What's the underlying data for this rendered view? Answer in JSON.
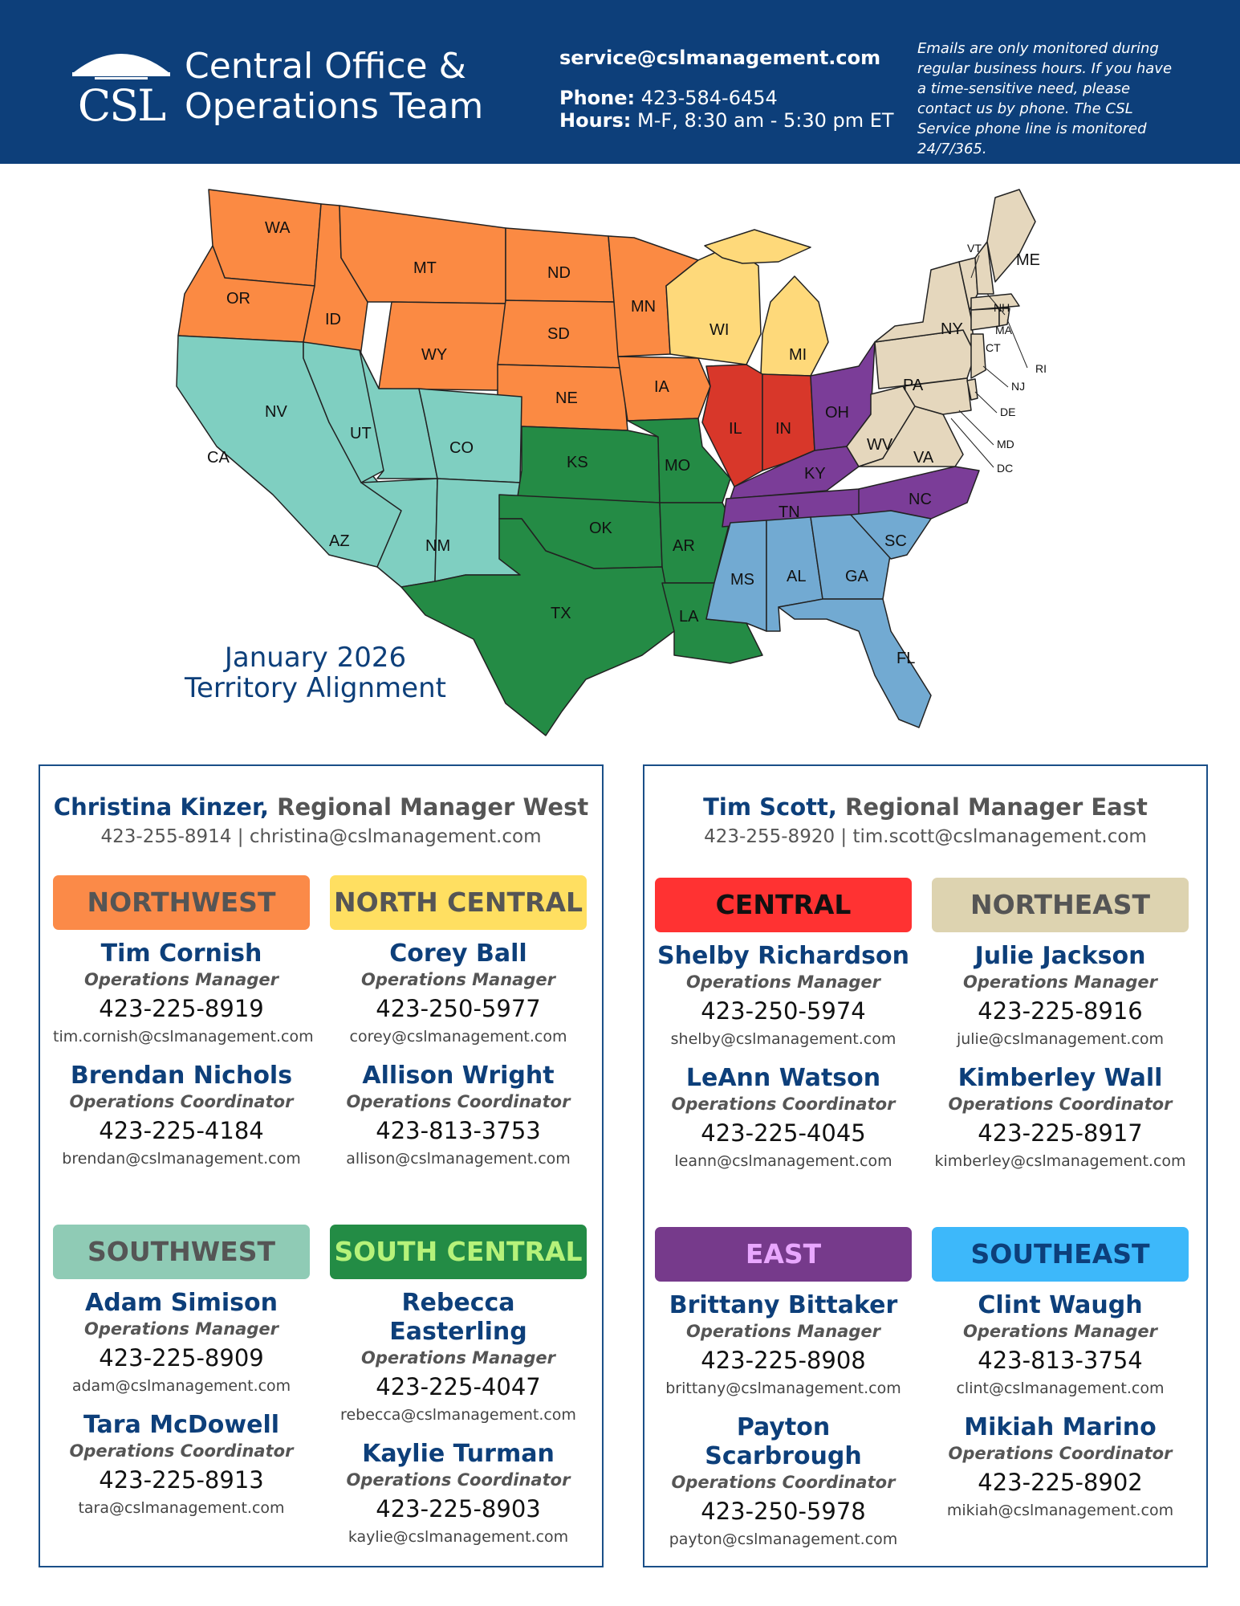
{
  "header": {
    "logo_text": "CSL",
    "title_line1": "Central Office &",
    "title_line2": "Operations Team",
    "email": "service@cslmanagement.com",
    "phone_label": "Phone:",
    "phone": "423-584-6454",
    "hours_label": "Hours:",
    "hours": "M-F, 8:30 am - 5:30 pm ET",
    "disclaimer": "Emails are only monitored during regular business hours. If you have a time-sensitive need, please contact us by phone. The CSL Service phone line is monitored 24/7/365."
  },
  "map": {
    "caption_line1": "January 2026",
    "caption_line2": "Territory Alignment",
    "region_colors": {
      "northwest": "#fb8a43",
      "north_central": "#fed97a",
      "southwest": "#7fcfc1",
      "south_central": "#248b45",
      "central": "#d8372a",
      "east": "#7b3d98",
      "northeast": "#e5d7bd",
      "southeast": "#72aad2"
    },
    "states": {
      "WA": "WA",
      "OR": "OR",
      "ID": "ID",
      "MT": "MT",
      "WY": "WY",
      "ND": "ND",
      "SD": "SD",
      "NE": "NE",
      "MN": "MN",
      "IA": "IA",
      "WI": "WI",
      "MI": "MI",
      "CA": "CA",
      "NV": "NV",
      "UT": "UT",
      "CO": "CO",
      "AZ": "AZ",
      "NM": "NM",
      "KS": "KS",
      "MO": "MO",
      "OK": "OK",
      "AR": "AR",
      "TX": "TX",
      "LA": "LA",
      "IL": "IL",
      "IN": "IN",
      "OH": "OH",
      "KY": "KY",
      "TN": "TN",
      "NC": "NC",
      "MS": "MS",
      "AL": "AL",
      "GA": "GA",
      "SC": "SC",
      "FL": "FL",
      "PA": "PA",
      "NY": "NY",
      "WV": "WV",
      "VA": "VA",
      "VT": "VT",
      "ME": "ME",
      "NH": "NH",
      "MA": "MA",
      "CT": "CT",
      "RI": "RI",
      "NJ": "NJ",
      "DE": "DE",
      "MD": "MD",
      "DC": "DC"
    }
  },
  "west": {
    "manager_name": "Christina Kinzer,",
    "manager_title": " Regional Manager West",
    "manager_contact": "423-255-8914 | christina@cslmanagement.com",
    "regions": [
      {
        "name": "NORTHWEST",
        "color": "#fb8a48",
        "text_color": "#555555",
        "people": [
          {
            "name": "Tim Cornish",
            "role": "Operations Manager",
            "phone": "423-225-8919",
            "email": "tim.cornish@cslmanagement.com"
          },
          {
            "name": "Brendan Nichols",
            "role": "Operations Coordinator",
            "phone": "423-225-4184",
            "email": "brendan@cslmanagement.com"
          }
        ]
      },
      {
        "name": "NORTH CENTRAL",
        "color": "#ffdf61",
        "text_color": "#555555",
        "people": [
          {
            "name": "Corey Ball",
            "role": "Operations Manager",
            "phone": "423-250-5977",
            "email": "corey@cslmanagement.com"
          },
          {
            "name": "Allison Wright",
            "role": "Operations Coordinator",
            "phone": "423-813-3753",
            "email": "allison@cslmanagement.com"
          }
        ]
      },
      {
        "name": "SOUTHWEST",
        "color": "#8fcbb5",
        "text_color": "#555555",
        "people": [
          {
            "name": "Adam Simison",
            "role": "Operations Manager",
            "phone": "423-225-8909",
            "email": "adam@cslmanagement.com"
          },
          {
            "name": "Tara McDowell",
            "role": "Operations Coordinator",
            "phone": "423-225-8913",
            "email": "tara@cslmanagement.com"
          }
        ]
      },
      {
        "name": "SOUTH CENTRAL",
        "color": "#238c45",
        "text_color": "#b6f27a",
        "people": [
          {
            "name": "Rebecca Easterling",
            "role": "Operations Manager",
            "phone": "423-225-4047",
            "email": "rebecca@cslmanagement.com"
          },
          {
            "name": "Kaylie Turman",
            "role": "Operations Coordinator",
            "phone": "423-225-8903",
            "email": "kaylie@cslmanagement.com"
          }
        ]
      }
    ]
  },
  "east": {
    "manager_name": "Tim Scott,",
    "manager_title": " Regional Manager East",
    "manager_contact": "423-255-8920 | tim.scott@cslmanagement.com",
    "regions": [
      {
        "name": "CENTRAL",
        "color": "#ff3232",
        "text_color": "#111111",
        "people": [
          {
            "name": "Shelby Richardson",
            "role": "Operations Manager",
            "phone": "423-250-5974",
            "email": "shelby@cslmanagement.com"
          },
          {
            "name": "LeAnn Watson",
            "role": "Operations Coordinator",
            "phone": "423-225-4045",
            "email": "leann@cslmanagement.com"
          }
        ]
      },
      {
        "name": "NORTHEAST",
        "color": "#ddd3b0",
        "text_color": "#555555",
        "people": [
          {
            "name": "Julie Jackson",
            "role": "Operations Manager",
            "phone": "423-225-8916",
            "email": "julie@cslmanagement.com"
          },
          {
            "name": "Kimberley Wall",
            "role": "Operations Coordinator",
            "phone": "423-225-8917",
            "email": "kimberley@cslmanagement.com"
          }
        ]
      },
      {
        "name": "EAST",
        "color": "#763a8b",
        "text_color": "#e9a7ff",
        "people": [
          {
            "name": "Brittany Bittaker",
            "role": "Operations Manager",
            "phone": "423-225-8908",
            "email": "brittany@cslmanagement.com"
          },
          {
            "name": "Payton Scarbrough",
            "role": "Operations Coordinator",
            "phone": "423-250-5978",
            "email": "payton@cslmanagement.com"
          }
        ]
      },
      {
        "name": "SOUTHEAST",
        "color": "#3db8fa",
        "text_color": "#0d3f7a",
        "people": [
          {
            "name": "Clint Waugh",
            "role": "Operations Manager",
            "phone": "423-813-3754",
            "email": "clint@cslmanagement.com"
          },
          {
            "name": "Mikiah Marino",
            "role": "Operations Coordinator",
            "phone": "423-225-8902",
            "email": "mikiah@cslmanagement.com"
          }
        ]
      }
    ]
  }
}
